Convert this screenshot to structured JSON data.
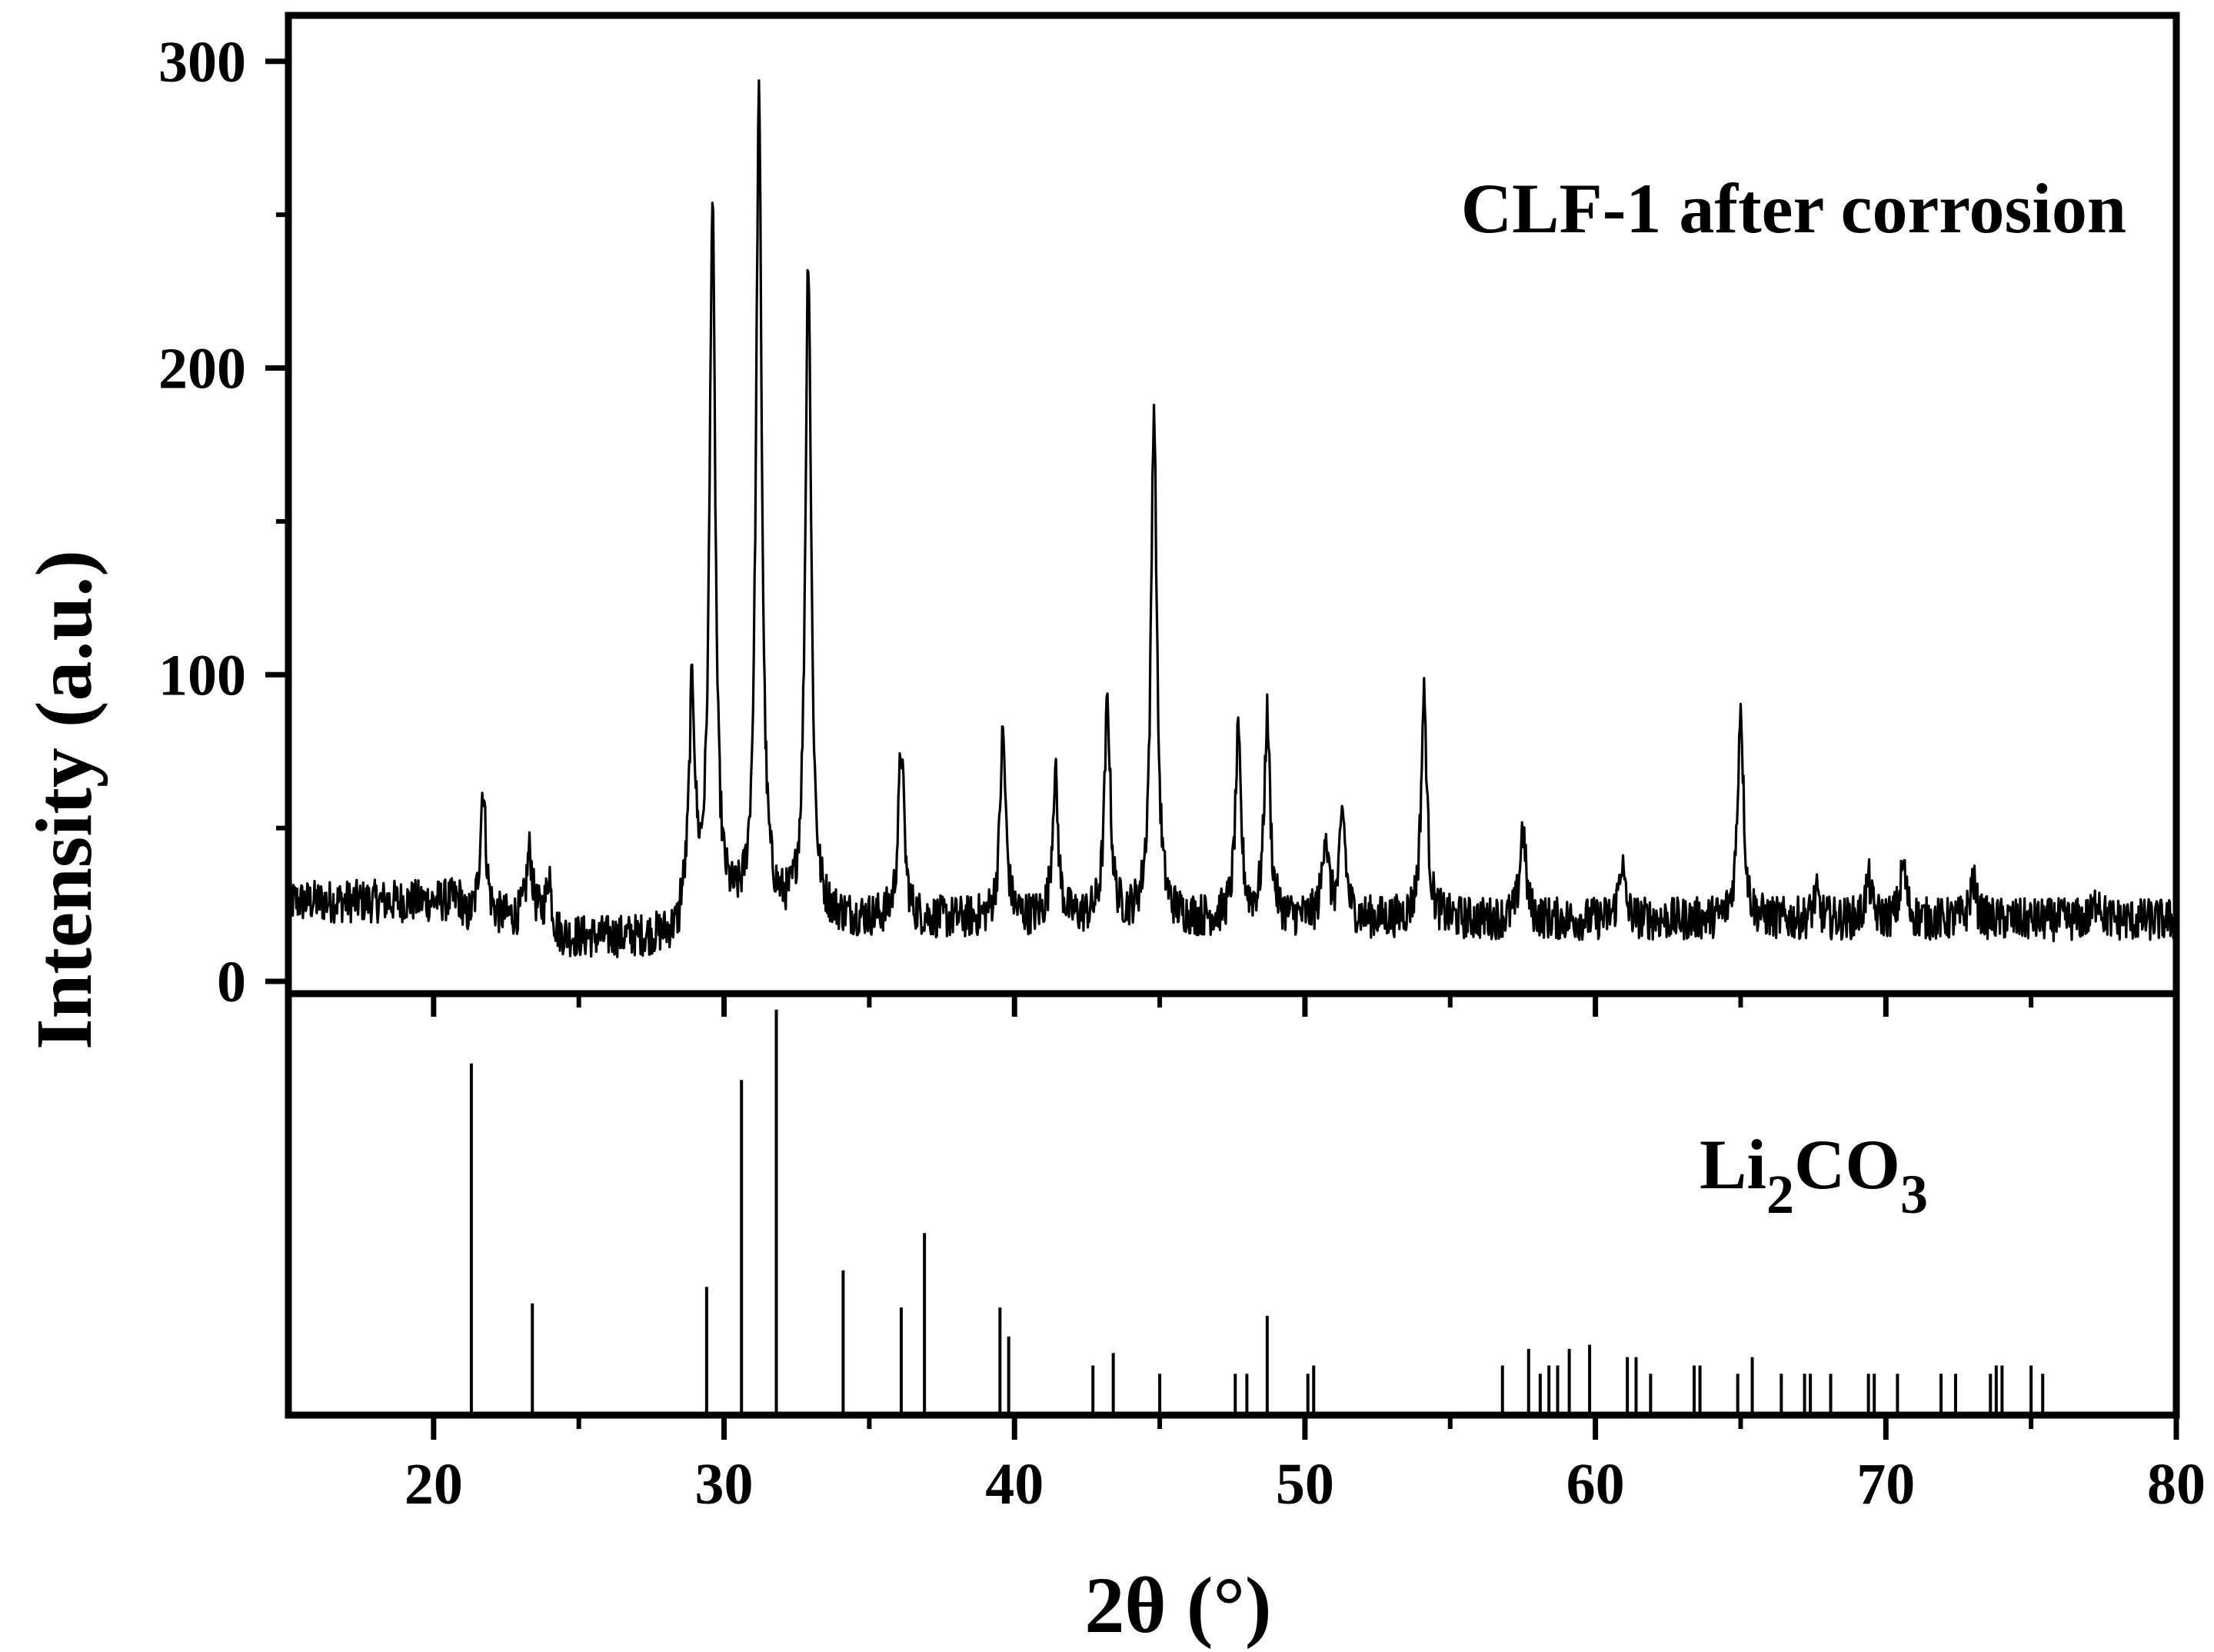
{
  "chart_data": [
    {
      "type": "line",
      "panel": "top",
      "annotation": "CLF-1 after corrosion",
      "ylabel": "Intensity (a.u.)",
      "xlim": [
        15,
        80
      ],
      "ylim": [
        -4,
        315
      ],
      "y_ticks": [
        0,
        100,
        200,
        300
      ],
      "grid": false,
      "background": 20,
      "noise": 7,
      "peaks": [
        {
          "x": 21.7,
          "y": 63
        },
        {
          "x": 23.3,
          "y": 42
        },
        {
          "x": 24.0,
          "y": 35
        },
        {
          "x": 28.9,
          "y": 92
        },
        {
          "x": 29.6,
          "y": 250
        },
        {
          "x": 31.2,
          "y": 285
        },
        {
          "x": 32.9,
          "y": 236
        },
        {
          "x": 36.1,
          "y": 76
        },
        {
          "x": 39.6,
          "y": 80
        },
        {
          "x": 41.4,
          "y": 67
        },
        {
          "x": 43.2,
          "y": 90
        },
        {
          "x": 44.8,
          "y": 187
        },
        {
          "x": 47.7,
          "y": 78
        },
        {
          "x": 48.7,
          "y": 86
        },
        {
          "x": 50.7,
          "y": 48
        },
        {
          "x": 51.3,
          "y": 54
        },
        {
          "x": 54.1,
          "y": 93
        },
        {
          "x": 57.5,
          "y": 50
        },
        {
          "x": 60.9,
          "y": 39
        },
        {
          "x": 65.0,
          "y": 90
        },
        {
          "x": 67.6,
          "y": 28
        },
        {
          "x": 69.4,
          "y": 33
        },
        {
          "x": 70.6,
          "y": 38
        },
        {
          "x": 73.0,
          "y": 33
        },
        {
          "x": 77.3,
          "y": 28
        }
      ]
    },
    {
      "type": "bar",
      "panel": "bottom",
      "annotation_main": "Li",
      "annotation_sub1": "2",
      "annotation_mid": "CO",
      "annotation_sub2": "3",
      "xlabel": "2θ (°)",
      "xlim": [
        15,
        80
      ],
      "x_ticks": [
        20,
        30,
        40,
        50,
        60,
        70,
        80
      ],
      "ylim": [
        0,
        100
      ],
      "lines": [
        {
          "x": 21.3,
          "y": 85
        },
        {
          "x": 23.4,
          "y": 27
        },
        {
          "x": 29.4,
          "y": 31
        },
        {
          "x": 30.6,
          "y": 81
        },
        {
          "x": 31.8,
          "y": 98
        },
        {
          "x": 34.1,
          "y": 35
        },
        {
          "x": 36.1,
          "y": 26
        },
        {
          "x": 36.9,
          "y": 44
        },
        {
          "x": 39.5,
          "y": 26
        },
        {
          "x": 39.8,
          "y": 19
        },
        {
          "x": 42.7,
          "y": 12
        },
        {
          "x": 43.4,
          "y": 15
        },
        {
          "x": 45.0,
          "y": 10
        },
        {
          "x": 47.6,
          "y": 10
        },
        {
          "x": 48.0,
          "y": 10
        },
        {
          "x": 48.7,
          "y": 24
        },
        {
          "x": 50.1,
          "y": 10
        },
        {
          "x": 50.3,
          "y": 12
        },
        {
          "x": 56.8,
          "y": 12
        },
        {
          "x": 57.7,
          "y": 16
        },
        {
          "x": 58.1,
          "y": 10
        },
        {
          "x": 58.4,
          "y": 12
        },
        {
          "x": 58.7,
          "y": 12
        },
        {
          "x": 59.1,
          "y": 16
        },
        {
          "x": 59.8,
          "y": 17
        },
        {
          "x": 61.1,
          "y": 14
        },
        {
          "x": 61.4,
          "y": 14
        },
        {
          "x": 61.9,
          "y": 10
        },
        {
          "x": 63.4,
          "y": 12
        },
        {
          "x": 63.6,
          "y": 12
        },
        {
          "x": 64.9,
          "y": 10
        },
        {
          "x": 65.4,
          "y": 14
        },
        {
          "x": 66.4,
          "y": 10
        },
        {
          "x": 67.2,
          "y": 10
        },
        {
          "x": 67.4,
          "y": 10
        },
        {
          "x": 68.1,
          "y": 10
        },
        {
          "x": 69.4,
          "y": 10
        },
        {
          "x": 69.6,
          "y": 10
        },
        {
          "x": 70.4,
          "y": 10
        },
        {
          "x": 71.9,
          "y": 10
        },
        {
          "x": 72.4,
          "y": 10
        },
        {
          "x": 73.6,
          "y": 10
        },
        {
          "x": 73.8,
          "y": 12
        },
        {
          "x": 74.0,
          "y": 12
        },
        {
          "x": 75.0,
          "y": 12
        },
        {
          "x": 75.4,
          "y": 10
        }
      ]
    }
  ]
}
